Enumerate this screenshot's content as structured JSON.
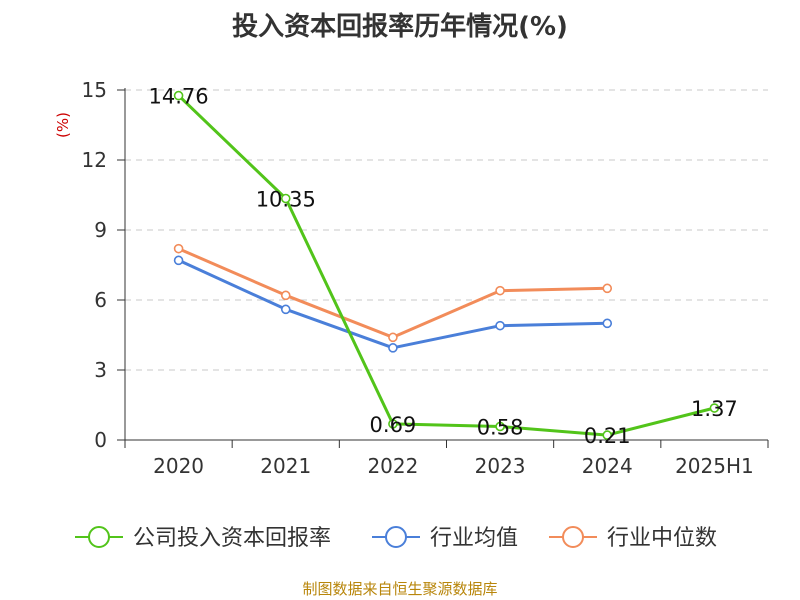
{
  "chart_data": {
    "type": "line",
    "title": "投入资本回报率历年情况(%)",
    "ylabel": "(%)",
    "xlabel": "",
    "categories": [
      "2020",
      "2021",
      "2022",
      "2023",
      "2024",
      "2025H1"
    ],
    "ylim": [
      0,
      15
    ],
    "yticks": [
      0,
      3,
      6,
      9,
      12,
      15
    ],
    "grid": true,
    "legend_position": "bottom",
    "series": [
      {
        "name": "公司投入资本回报率",
        "color": "#52c41a",
        "values": [
          14.76,
          10.35,
          0.69,
          0.58,
          0.21,
          1.37
        ],
        "labels": [
          "14.76",
          "10.35",
          "0.69",
          "0.58",
          "0.21",
          "1.37"
        ]
      },
      {
        "name": "行业均值",
        "color": "#4a7fd9",
        "values": [
          7.7,
          5.6,
          3.95,
          4.9,
          5.0,
          null
        ]
      },
      {
        "name": "行业中位数",
        "color": "#f28c5a",
        "values": [
          8.2,
          6.2,
          4.4,
          6.4,
          6.5,
          null
        ]
      }
    ]
  },
  "source_text": "制图数据来自恒生聚源数据库"
}
